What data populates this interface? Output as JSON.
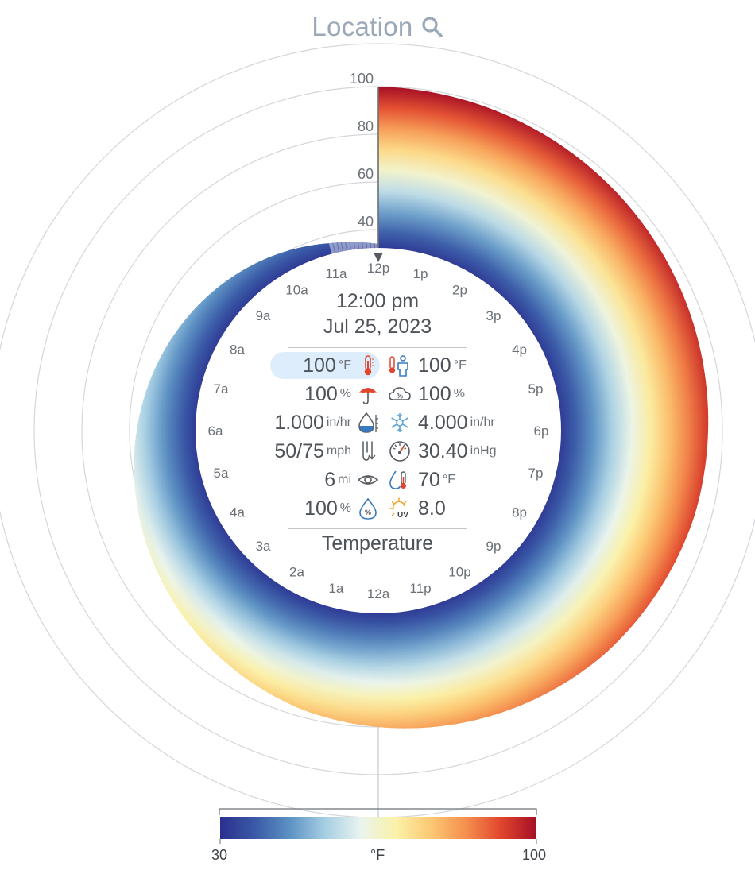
{
  "header": {
    "location_title": "Location",
    "search_icon": "search-icon"
  },
  "radial": {
    "radius_labels": [
      "100",
      "80",
      "60",
      "40"
    ],
    "hour_labels": [
      "12a",
      "1a",
      "2a",
      "3a",
      "4a",
      "5a",
      "6a",
      "7a",
      "8a",
      "9a",
      "10a",
      "11a",
      "12p",
      "1p",
      "2p",
      "3p",
      "4p",
      "5p",
      "6p",
      "7p",
      "8p",
      "9p",
      "10p",
      "11p"
    ],
    "temperature_curve": [
      {
        "hour": "12p",
        "value": 100
      },
      {
        "hour": "1p",
        "value": 99
      },
      {
        "hour": "2p",
        "value": 98
      },
      {
        "hour": "3p",
        "value": 97
      },
      {
        "hour": "4p",
        "value": 96
      },
      {
        "hour": "5p",
        "value": 95
      },
      {
        "hour": "6p",
        "value": 94
      },
      {
        "hour": "7p",
        "value": 93
      },
      {
        "hour": "8p",
        "value": 91
      },
      {
        "hour": "9p",
        "value": 89
      },
      {
        "hour": "10p",
        "value": 86
      },
      {
        "hour": "11p",
        "value": 83
      },
      {
        "hour": "12a",
        "value": 80
      },
      {
        "hour": "1a",
        "value": 77
      },
      {
        "hour": "2a",
        "value": 73
      },
      {
        "hour": "3a",
        "value": 69
      },
      {
        "hour": "4a",
        "value": 65
      },
      {
        "hour": "5a",
        "value": 61
      },
      {
        "hour": "6a",
        "value": 57
      },
      {
        "hour": "7a",
        "value": 53
      },
      {
        "hour": "8a",
        "value": 49
      },
      {
        "hour": "9a",
        "value": 45
      },
      {
        "hour": "10a",
        "value": 41
      },
      {
        "hour": "11a",
        "value": 37
      }
    ]
  },
  "center": {
    "time": "12:00 pm",
    "date": "Jul 25, 2023",
    "footer_label": "Temperature",
    "metrics_left": [
      {
        "value": "100",
        "unit": "°F",
        "icon": "thermometer-icon",
        "selected": true
      },
      {
        "value": "100",
        "unit": "%",
        "icon": "umbrella-icon",
        "selected": false
      },
      {
        "value": "1.000",
        "unit": "in/hr",
        "icon": "rain-rate-icon",
        "selected": false
      },
      {
        "value": "50/75",
        "unit": "mph",
        "icon": "wind-icon",
        "selected": false
      },
      {
        "value": "6",
        "unit": "mi",
        "icon": "eye-icon",
        "selected": false
      },
      {
        "value": "100",
        "unit": "%",
        "icon": "humidity-icon",
        "selected": false
      }
    ],
    "metrics_right": [
      {
        "value": "100",
        "unit": "°F",
        "icon": "feels-like-icon",
        "selected": false
      },
      {
        "value": "100",
        "unit": "%",
        "icon": "cloud-cover-icon",
        "selected": false
      },
      {
        "value": "4.000",
        "unit": "in/hr",
        "icon": "snow-rate-icon",
        "selected": false
      },
      {
        "value": "30.40",
        "unit": "inHg",
        "icon": "pressure-gauge-icon",
        "selected": false
      },
      {
        "value": "70",
        "unit": "°F",
        "icon": "dewpoint-icon",
        "selected": false
      },
      {
        "value": "8.0",
        "unit": "",
        "icon": "uv-sun-icon",
        "selected": false
      }
    ]
  },
  "legend": {
    "min_label": "30",
    "unit_label": "°F",
    "max_label": "100"
  },
  "colors": {
    "scale": [
      "#2b2f8e",
      "#3a5aa7",
      "#5e93c4",
      "#a7cfe3",
      "#eaf4ee",
      "#fbf2a8",
      "#fcc873",
      "#f58f4e",
      "#e0452d",
      "#a50f26"
    ],
    "ring": "#d4d6d9",
    "axis": "#c4c7ca",
    "title": "#9aa8b8"
  }
}
